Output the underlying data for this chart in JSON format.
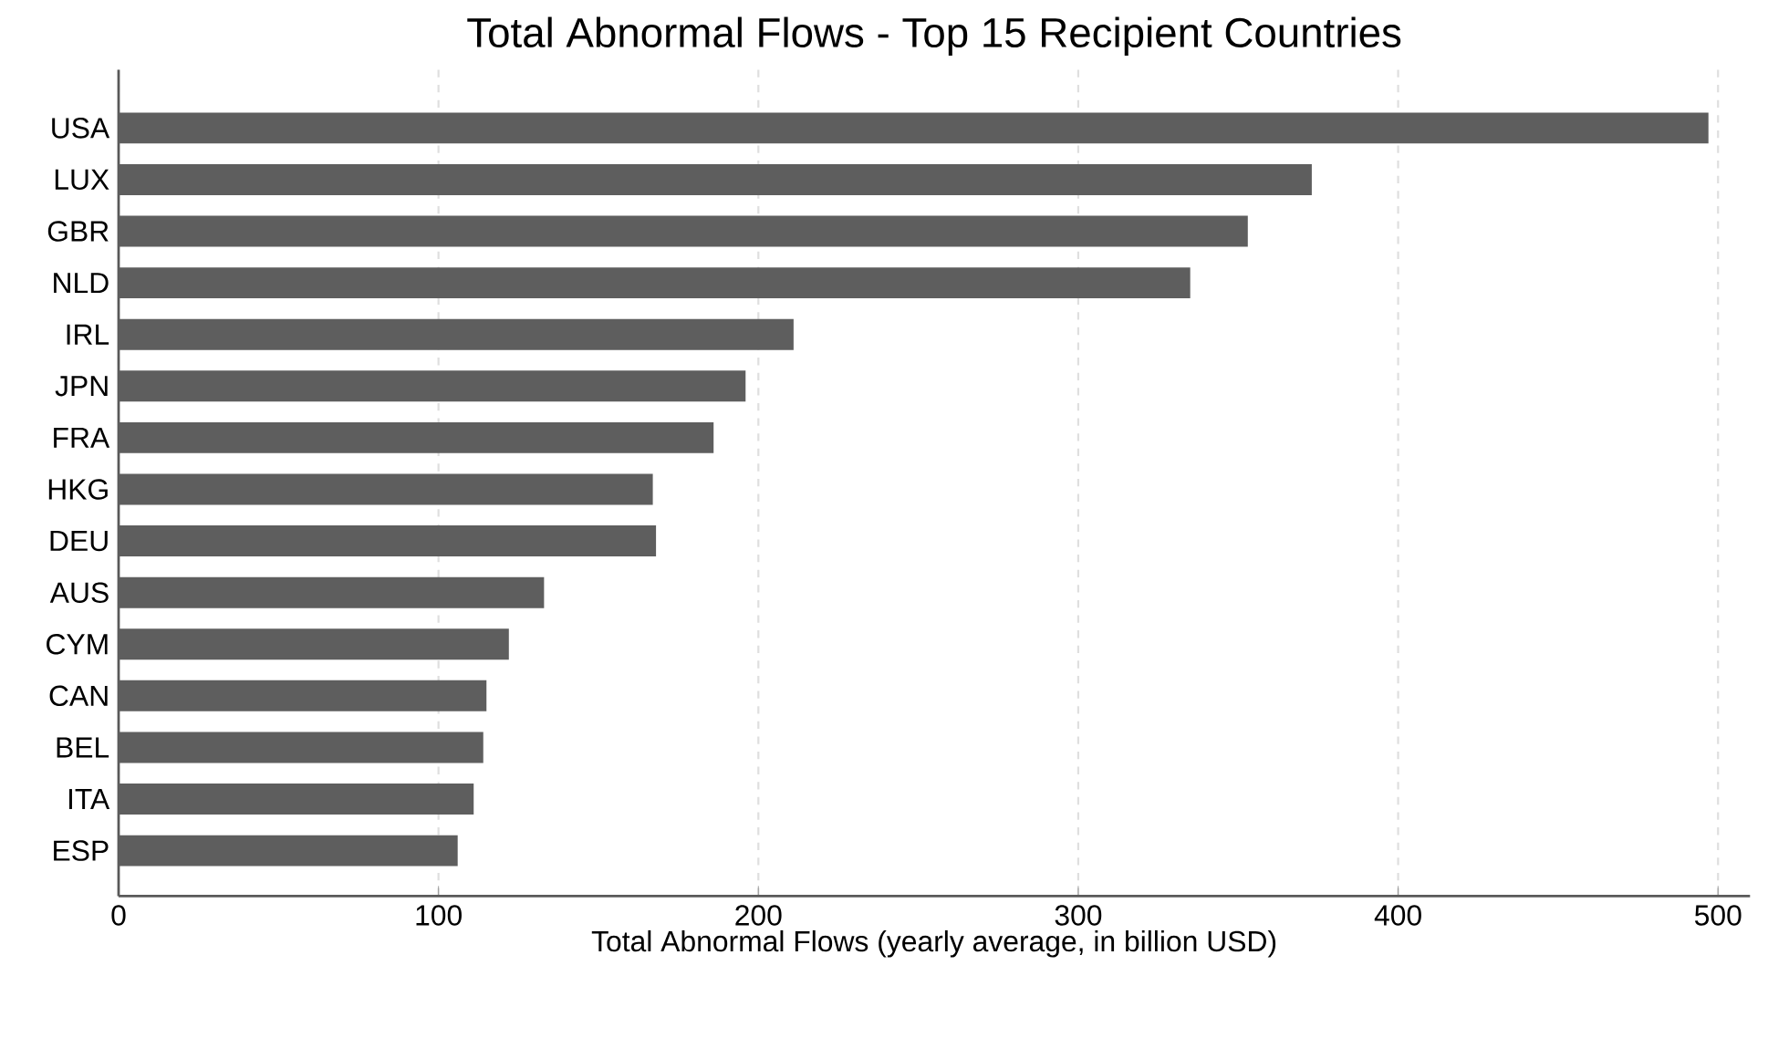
{
  "chart_data": {
    "type": "bar",
    "orientation": "horizontal",
    "title": "Total Abnormal Flows - Top 15 Recipient Countries",
    "xlabel": "Total Abnormal Flows (yearly average, in billion USD)",
    "categories": [
      "USA",
      "LUX",
      "GBR",
      "NLD",
      "IRL",
      "JPN",
      "FRA",
      "HKG",
      "DEU",
      "AUS",
      "CYM",
      "CAN",
      "BEL",
      "ITA",
      "ESP"
    ],
    "values": [
      497,
      373,
      353,
      335,
      211,
      196,
      186,
      167,
      168,
      133,
      122,
      115,
      114,
      111,
      106
    ],
    "color": "#5e5e5e",
    "xlim": [
      0,
      510
    ],
    "xticks": [
      0,
      100,
      200,
      300,
      400,
      500
    ],
    "grid": "x"
  }
}
